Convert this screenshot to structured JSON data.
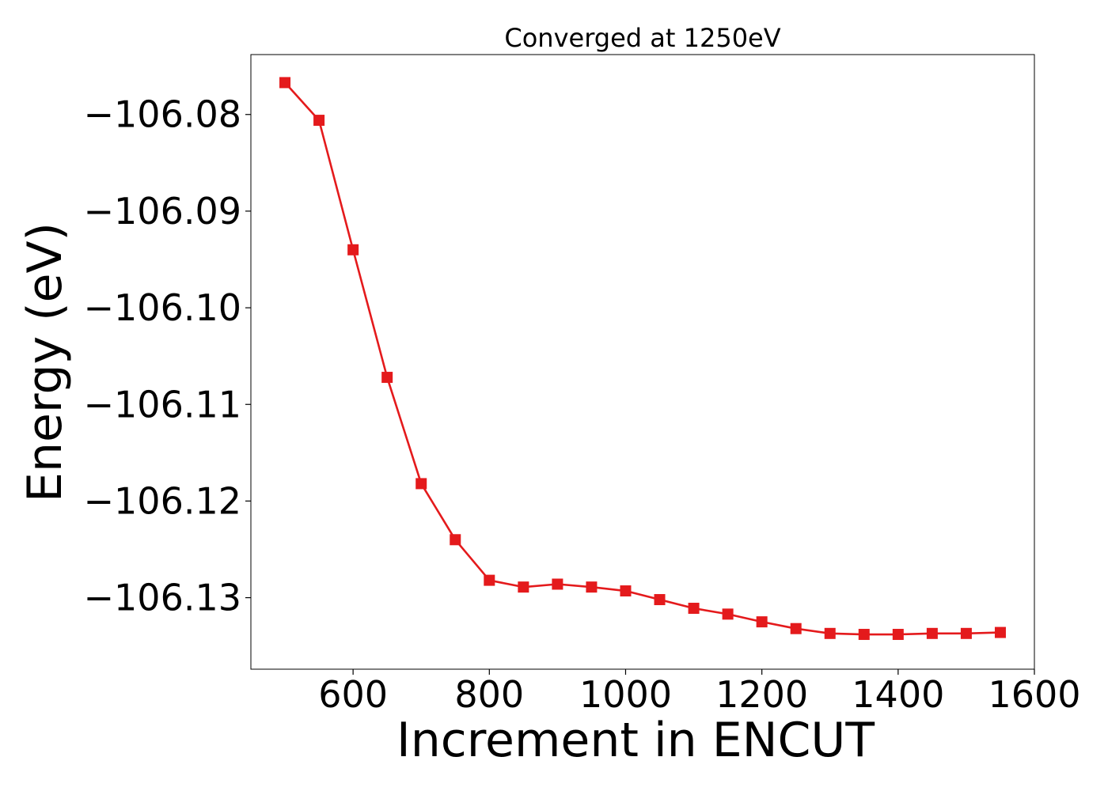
{
  "chart_data": {
    "type": "line",
    "title": "Converged at 1250eV",
    "xlabel": "Increment in ENCUT",
    "ylabel": "Energy (eV)",
    "xlim": [
      450,
      1600
    ],
    "ylim": [
      -106.1374,
      -106.0738
    ],
    "xticks": [
      600,
      800,
      1000,
      1200,
      1400,
      1600
    ],
    "xtick_labels": [
      "600",
      "800",
      "1000",
      "1200",
      "1400",
      "1600"
    ],
    "yticks": [
      -106.08,
      -106.09,
      -106.1,
      -106.11,
      -106.12,
      -106.13
    ],
    "ytick_labels": [
      "−106.08",
      "−106.09",
      "−106.10",
      "−106.11",
      "−106.12",
      "−106.13"
    ],
    "grid": false,
    "series": [
      {
        "color": "#e41a1c",
        "marker": "square",
        "x": [
          500,
          550,
          600,
          650,
          700,
          750,
          800,
          850,
          900,
          950,
          1000,
          1050,
          1100,
          1150,
          1200,
          1250,
          1300,
          1350,
          1400,
          1450,
          1500,
          1550
        ],
        "y": [
          -106.0767,
          -106.0806,
          -106.094,
          -106.1072,
          -106.1182,
          -106.124,
          -106.1282,
          -106.1289,
          -106.1286,
          -106.1289,
          -106.1293,
          -106.1302,
          -106.1311,
          -106.1317,
          -106.1325,
          -106.1332,
          -106.1337,
          -106.1338,
          -106.1338,
          -106.1337,
          -106.1337,
          -106.1336
        ]
      }
    ]
  }
}
